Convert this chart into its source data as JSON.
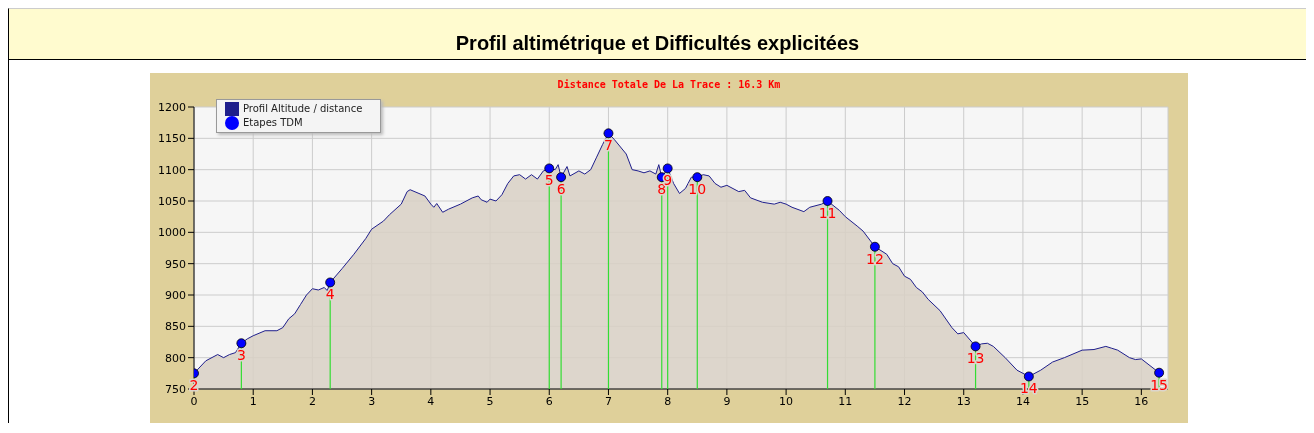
{
  "chart_data": {
    "type": "area",
    "title": "Profil altimétrique et Difficultés explicitées",
    "subtitle": "Distance Totale De La Trace : 16.3 Km",
    "xlim": [
      0,
      16.45
    ],
    "xticks": [
      0,
      1,
      2,
      3,
      4,
      5,
      6,
      7,
      8,
      9,
      10,
      11,
      12,
      13,
      14,
      15,
      16
    ],
    "ylim": [
      750,
      1200
    ],
    "yticks": [
      750,
      800,
      850,
      900,
      950,
      1000,
      1050,
      1100,
      1150,
      1200
    ],
    "grid": true,
    "legend": "top left",
    "series": [
      {
        "name": "Profil Altitude / distance",
        "color": "#1f1f8c",
        "x": [
          0,
          0.2,
          0.4,
          0.5,
          0.6,
          0.7,
          0.8,
          0.9,
          1.0,
          1.2,
          1.4,
          1.5,
          1.6,
          1.7,
          1.8,
          1.9,
          2.0,
          2.1,
          2.2,
          2.25,
          2.3,
          2.5,
          2.7,
          2.9,
          3.0,
          3.2,
          3.3,
          3.5,
          3.6,
          3.65,
          3.8,
          3.9,
          4.0,
          4.05,
          4.1,
          4.2,
          4.3,
          4.5,
          4.7,
          4.8,
          4.85,
          4.95,
          5.0,
          5.1,
          5.2,
          5.3,
          5.4,
          5.5,
          5.6,
          5.7,
          5.8,
          5.9,
          6.0,
          6.1,
          6.15,
          6.2,
          6.3,
          6.35,
          6.5,
          6.6,
          6.7,
          6.8,
          6.9,
          7.0,
          7.1,
          7.3,
          7.4,
          7.5,
          7.6,
          7.7,
          7.8,
          7.85,
          7.9,
          8.0,
          8.1,
          8.2,
          8.3,
          8.4,
          8.5,
          8.6,
          8.7,
          8.8,
          8.9,
          9.0,
          9.2,
          9.3,
          9.4,
          9.6,
          9.8,
          9.9,
          10.0,
          10.1,
          10.3,
          10.4,
          10.6,
          10.7,
          10.9,
          11.0,
          11.2,
          11.3,
          11.5,
          11.7,
          11.8,
          11.9,
          12.0,
          12.1,
          12.2,
          12.3,
          12.4,
          12.6,
          12.8,
          12.9,
          13.0,
          13.2,
          13.3,
          13.4,
          13.5,
          13.7,
          13.9,
          14.1,
          14.3,
          14.5,
          14.7,
          15.0,
          15.2,
          15.4,
          15.5,
          15.6,
          15.8,
          15.9,
          16.0,
          16.3
        ],
        "values": [
          775,
          795,
          805,
          800,
          805,
          808,
          823,
          830,
          835,
          843,
          843,
          848,
          862,
          870,
          885,
          900,
          910,
          908,
          912,
          907,
          920,
          942,
          965,
          990,
          1005,
          1018,
          1028,
          1045,
          1065,
          1068,
          1062,
          1058,
          1045,
          1040,
          1046,
          1032,
          1037,
          1045,
          1055,
          1058,
          1052,
          1048,
          1053,
          1050,
          1060,
          1078,
          1090,
          1092,
          1085,
          1092,
          1085,
          1098,
          1102,
          1100,
          1108,
          1088,
          1105,
          1090,
          1098,
          1093,
          1100,
          1120,
          1140,
          1158,
          1148,
          1125,
          1100,
          1098,
          1095,
          1098,
          1093,
          1108,
          1088,
          1102,
          1078,
          1062,
          1070,
          1088,
          1088,
          1092,
          1090,
          1078,
          1072,
          1075,
          1065,
          1067,
          1055,
          1048,
          1045,
          1048,
          1045,
          1040,
          1033,
          1040,
          1045,
          1050,
          1035,
          1025,
          1010,
          1002,
          977,
          965,
          950,
          945,
          930,
          925,
          912,
          905,
          893,
          875,
          848,
          838,
          840,
          818,
          822,
          823,
          818,
          800,
          780,
          770,
          780,
          793,
          800,
          812,
          813,
          818,
          815,
          812,
          800,
          797,
          798,
          776
        ]
      },
      {
        "name": "Etapes TDM",
        "type": "lollipop",
        "marker": "circle",
        "color": "#0000ff",
        "x": [
          0,
          0.8,
          2.3,
          6.0,
          6.2,
          7.0,
          7.9,
          8.0,
          8.5,
          10.7,
          11.5,
          13.2,
          14.1,
          16.3
        ],
        "values": [
          775,
          823,
          920,
          1102,
          1088,
          1158,
          1088,
          1102,
          1088,
          1050,
          977,
          818,
          770,
          776
        ]
      }
    ],
    "annotations": [
      {
        "text": "2",
        "x": 0,
        "y": 775
      },
      {
        "text": "3",
        "x": 0.8,
        "y": 823
      },
      {
        "text": "4",
        "x": 2.3,
        "y": 920
      },
      {
        "text": "5",
        "x": 6.0,
        "y": 1102
      },
      {
        "text": "6",
        "x": 6.2,
        "y": 1088
      },
      {
        "text": "7",
        "x": 7.0,
        "y": 1158
      },
      {
        "text": "8",
        "x": 7.9,
        "y": 1088
      },
      {
        "text": "9",
        "x": 8.0,
        "y": 1102
      },
      {
        "text": "10",
        "x": 8.5,
        "y": 1088
      },
      {
        "text": "11",
        "x": 10.7,
        "y": 1050
      },
      {
        "text": "12",
        "x": 11.5,
        "y": 977
      },
      {
        "text": "13",
        "x": 13.2,
        "y": 818
      },
      {
        "text": "14",
        "x": 14.1,
        "y": 770
      },
      {
        "text": "15",
        "x": 16.3,
        "y": 776
      }
    ]
  }
}
